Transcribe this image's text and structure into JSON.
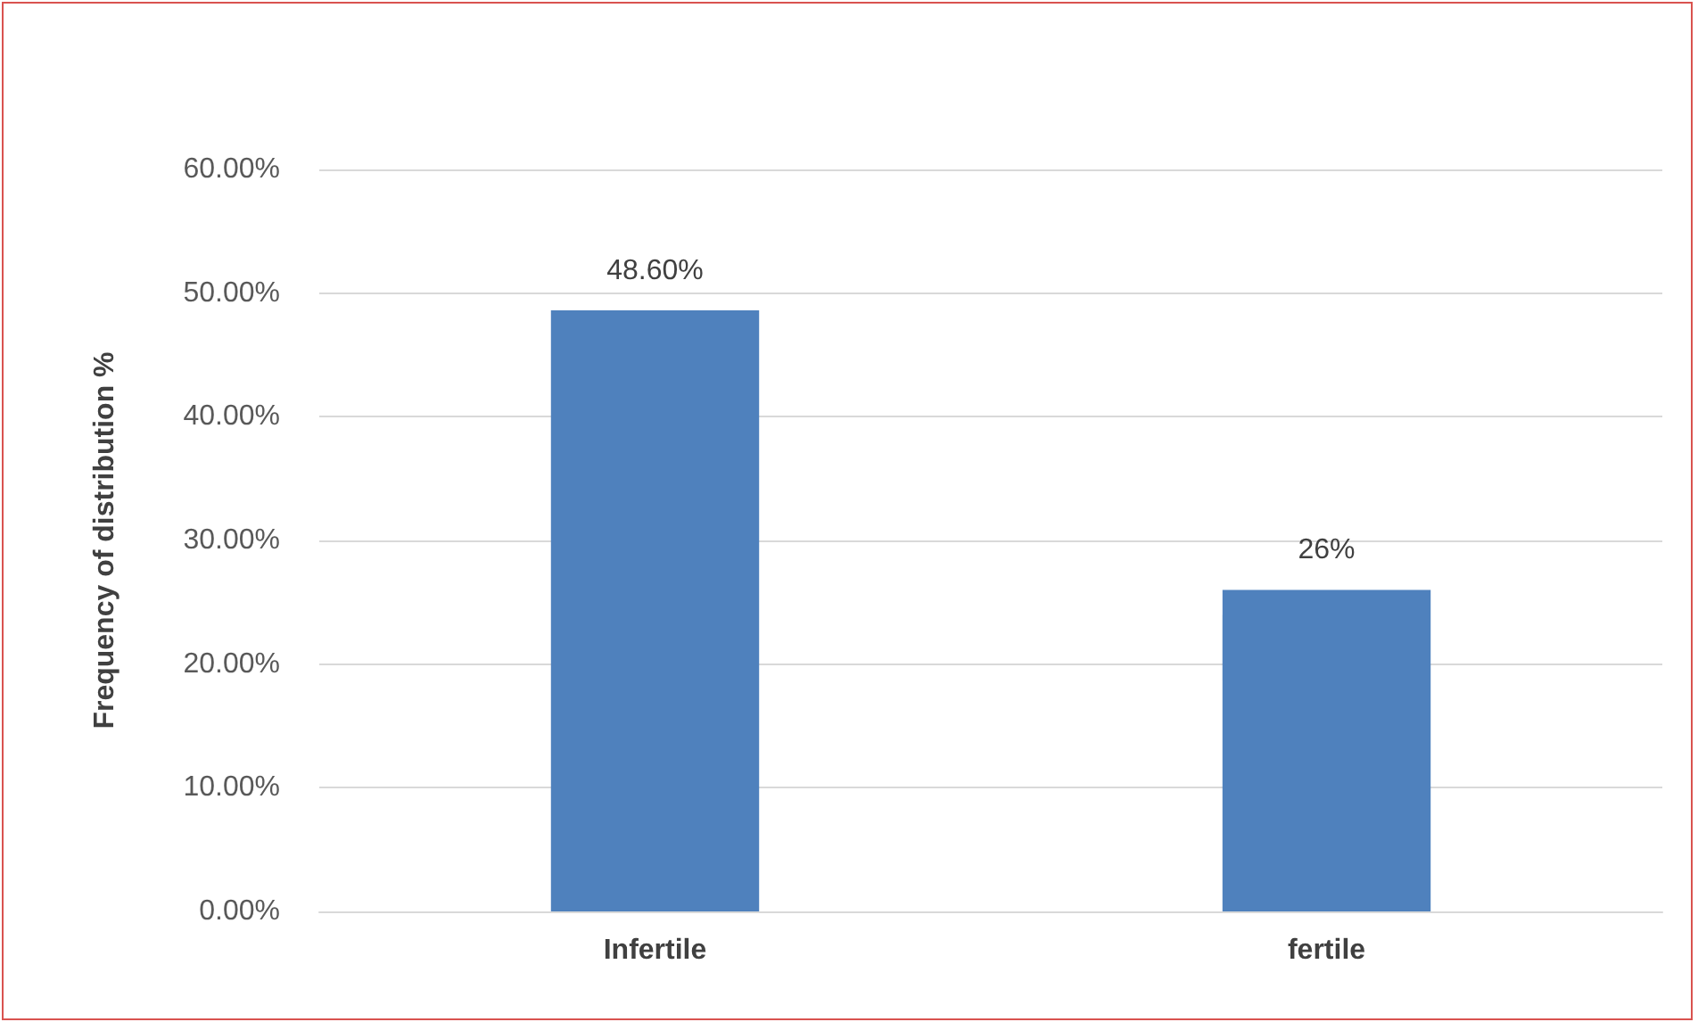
{
  "chart_data": {
    "type": "bar",
    "ylabel": "Frequency of distribution %",
    "categories": [
      "Infertile",
      "fertile"
    ],
    "values": [
      48.6,
      26
    ],
    "color": "#4f81bd",
    "value_labels": [
      "48.60%",
      "26%"
    ],
    "ylim": [
      0,
      60
    ],
    "yticks": [
      {
        "value": 0,
        "label": "0.00%"
      },
      {
        "value": 10,
        "label": "10.00%"
      },
      {
        "value": 20,
        "label": "20.00%"
      },
      {
        "value": 30,
        "label": "30.00%"
      },
      {
        "value": 40,
        "label": "40.00%"
      },
      {
        "value": 50,
        "label": "50.00%"
      },
      {
        "value": 60,
        "label": "60.00%"
      }
    ],
    "grid": "y"
  }
}
